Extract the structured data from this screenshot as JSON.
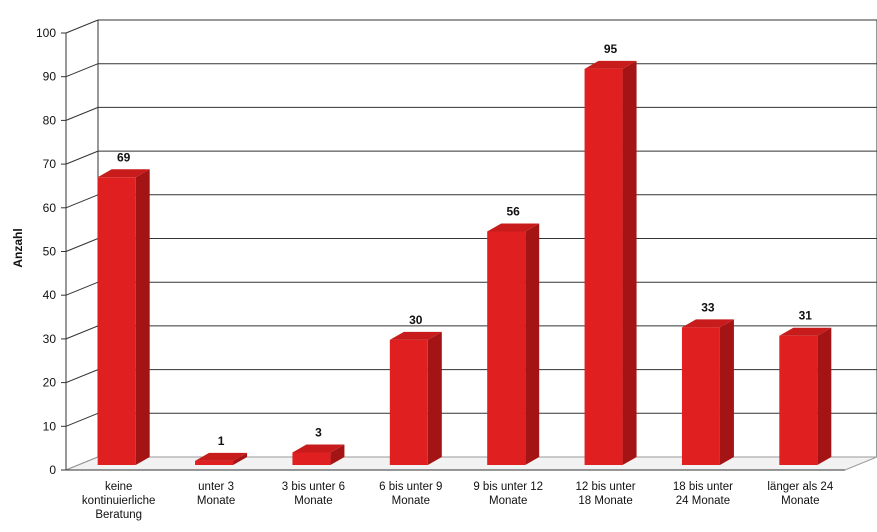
{
  "chart_data": {
    "type": "bar",
    "ylabel": "Anzahl",
    "xlabel": "",
    "ylim": [
      0,
      100
    ],
    "yticks": [
      "0",
      "10",
      "20",
      "30",
      "40",
      "50",
      "60",
      "70",
      "80",
      "90",
      "100"
    ],
    "categories": [
      [
        "keine",
        "kontinuierliche",
        "Beratung"
      ],
      [
        "unter 3",
        "Monate"
      ],
      [
        "3 bis unter 6",
        "Monate"
      ],
      [
        "6 bis unter 9",
        "Monate"
      ],
      [
        "9 bis unter 12",
        "Monate"
      ],
      [
        "12 bis unter",
        "18 Monate"
      ],
      [
        "18 bis unter",
        "24 Monate"
      ],
      [
        "länger als 24",
        "Monate"
      ]
    ],
    "values": [
      69,
      1,
      3,
      30,
      56,
      95,
      33,
      31
    ],
    "bar_color": "#e02020",
    "grid": true
  }
}
